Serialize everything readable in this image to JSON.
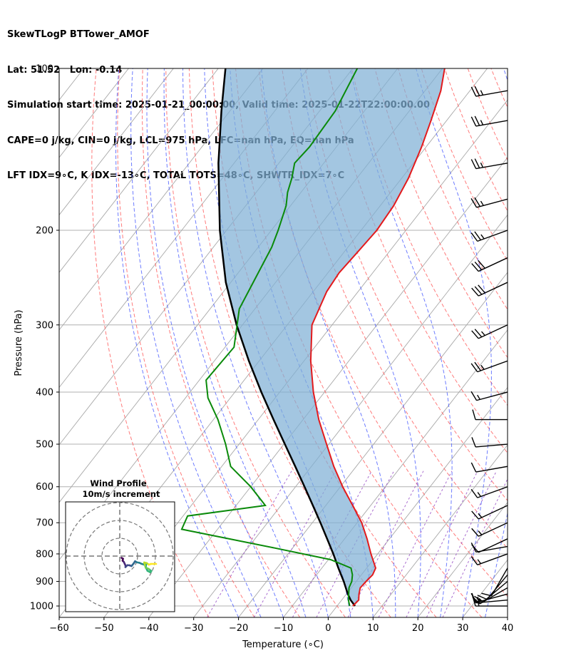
{
  "header": {
    "line1": "SkewTLogP BTTower_AMOF",
    "line2": "Lat: 51.52   Lon: -0.14",
    "line3": "Simulation start time: 2025-01-21_00:00:00, Valid time: 2025-01-22T22:00:00.00",
    "line4": "CAPE=0 j/kg, CIN=0 j/kg, LCL=975 hPa, LFC=nan hPa, EQ=nan hPa",
    "line5": "LFT IDX=9∘C, K IDX=-13∘C, TOTAL TOTS=48∘C, SHWTR_IDX=7∘C"
  },
  "chart_data": {
    "type": "skewt",
    "xlabel": "Temperature (∘C)",
    "ylabel": "Pressure (hPa)",
    "xlim": [
      -60,
      40
    ],
    "ylim": [
      1050,
      100
    ],
    "y_scale": "log",
    "x_ticks": [
      "−60",
      "−50",
      "−40",
      "−30",
      "−20",
      "−10",
      "0",
      "10",
      "20",
      "30",
      "40"
    ],
    "x_tick_values": [
      -60,
      -50,
      -40,
      -30,
      -20,
      -10,
      0,
      10,
      20,
      30,
      40
    ],
    "y_ticks": [
      "100",
      "200",
      "300",
      "400",
      "500",
      "600",
      "700",
      "800",
      "900",
      "1000"
    ],
    "y_tick_values": [
      100,
      200,
      300,
      400,
      500,
      600,
      700,
      800,
      900,
      1000
    ],
    "grid": true,
    "colors": {
      "temperature": "#e31a1c",
      "dewpoint": "#0a8a0a",
      "parcel": "#000000",
      "cin_fill": "#7fb0d6",
      "dry_adiabat": "#ff5a5a",
      "moist_adiabat": "#4a5cff",
      "mixing_ratio": "#9b55c8",
      "isotherm": "#a8a8a8"
    },
    "temperature_profile": [
      {
        "p": 1000,
        "t": 3.5
      },
      {
        "p": 975,
        "t": 3.8
      },
      {
        "p": 950,
        "t": 2.8
      },
      {
        "p": 925,
        "t": 2.0
      },
      {
        "p": 900,
        "t": 2.2
      },
      {
        "p": 875,
        "t": 2.5
      },
      {
        "p": 850,
        "t": 2.0
      },
      {
        "p": 800,
        "t": -1.5
      },
      {
        "p": 750,
        "t": -5.0
      },
      {
        "p": 700,
        "t": -9.0
      },
      {
        "p": 650,
        "t": -14.0
      },
      {
        "p": 600,
        "t": -19.5
      },
      {
        "p": 550,
        "t": -25.0
      },
      {
        "p": 500,
        "t": -30.5
      },
      {
        "p": 450,
        "t": -36.5
      },
      {
        "p": 400,
        "t": -42.5
      },
      {
        "p": 350,
        "t": -48.5
      },
      {
        "p": 300,
        "t": -54.5
      },
      {
        "p": 260,
        "t": -57.0
      },
      {
        "p": 240,
        "t": -57.5
      },
      {
        "p": 220,
        "t": -57.0
      },
      {
        "p": 200,
        "t": -56.5
      },
      {
        "p": 180,
        "t": -57.0
      },
      {
        "p": 160,
        "t": -58.5
      },
      {
        "p": 140,
        "t": -61.0
      },
      {
        "p": 125,
        "t": -63.5
      },
      {
        "p": 110,
        "t": -66.5
      },
      {
        "p": 100,
        "t": -69.5
      }
    ],
    "dewpoint_profile": [
      {
        "p": 1000,
        "t": 2.8
      },
      {
        "p": 975,
        "t": 1.5
      },
      {
        "p": 950,
        "t": 0.5
      },
      {
        "p": 925,
        "t": -0.5
      },
      {
        "p": 900,
        "t": -1.0
      },
      {
        "p": 875,
        "t": -2.0
      },
      {
        "p": 850,
        "t": -3.5
      },
      {
        "p": 820,
        "t": -9.5
      },
      {
        "p": 780,
        "t": -24.0
      },
      {
        "p": 720,
        "t": -48.0
      },
      {
        "p": 680,
        "t": -49.0
      },
      {
        "p": 650,
        "t": -33.5
      },
      {
        "p": 600,
        "t": -40.0
      },
      {
        "p": 550,
        "t": -48.0
      },
      {
        "p": 500,
        "t": -53.0
      },
      {
        "p": 450,
        "t": -59.0
      },
      {
        "p": 410,
        "t": -65.0
      },
      {
        "p": 380,
        "t": -68.5
      },
      {
        "p": 330,
        "t": -68.0
      },
      {
        "p": 280,
        "t": -73.5
      },
      {
        "p": 250,
        "t": -75.0
      },
      {
        "p": 215,
        "t": -77.0
      },
      {
        "p": 200,
        "t": -78.5
      },
      {
        "p": 180,
        "t": -81.0
      },
      {
        "p": 170,
        "t": -83.0
      },
      {
        "p": 160,
        "t": -84.5
      },
      {
        "p": 150,
        "t": -86.5
      },
      {
        "p": 140,
        "t": -86.0
      },
      {
        "p": 120,
        "t": -86.5
      },
      {
        "p": 100,
        "t": -89.0
      }
    ],
    "parcel_profile": [
      {
        "p": 1000,
        "t": 4.0
      },
      {
        "p": 975,
        "t": 2.0
      },
      {
        "p": 950,
        "t": 0.3
      },
      {
        "p": 900,
        "t": -2.8
      },
      {
        "p": 850,
        "t": -6.3
      },
      {
        "p": 800,
        "t": -9.9
      },
      {
        "p": 750,
        "t": -13.9
      },
      {
        "p": 700,
        "t": -18.2
      },
      {
        "p": 650,
        "t": -22.9
      },
      {
        "p": 600,
        "t": -28.0
      },
      {
        "p": 550,
        "t": -33.6
      },
      {
        "p": 500,
        "t": -39.8
      },
      {
        "p": 450,
        "t": -46.6
      },
      {
        "p": 400,
        "t": -54.1
      },
      {
        "p": 350,
        "t": -62.3
      },
      {
        "p": 300,
        "t": -71.3
      },
      {
        "p": 250,
        "t": -81.1
      },
      {
        "p": 200,
        "t": -91.5
      },
      {
        "p": 150,
        "t": -103.5
      },
      {
        "p": 120,
        "t": -111.9
      },
      {
        "p": 100,
        "t": -118.4
      }
    ],
    "wind_barbs": [
      {
        "p": 1000,
        "speed_kt": 15,
        "direction_deg": 270
      },
      {
        "p": 975,
        "speed_kt": 15,
        "direction_deg": 265
      },
      {
        "p": 950,
        "speed_kt": 15,
        "direction_deg": 255
      },
      {
        "p": 925,
        "speed_kt": 15,
        "direction_deg": 240
      },
      {
        "p": 900,
        "speed_kt": 10,
        "direction_deg": 230
      },
      {
        "p": 875,
        "speed_kt": 10,
        "direction_deg": 220
      },
      {
        "p": 850,
        "speed_kt": 10,
        "direction_deg": 210
      },
      {
        "p": 800,
        "speed_kt": 15,
        "direction_deg": 250
      },
      {
        "p": 775,
        "speed_kt": 10,
        "direction_deg": 260
      },
      {
        "p": 750,
        "speed_kt": 10,
        "direction_deg": 245
      },
      {
        "p": 700,
        "speed_kt": 15,
        "direction_deg": 245
      },
      {
        "p": 650,
        "speed_kt": 15,
        "direction_deg": 245
      },
      {
        "p": 600,
        "speed_kt": 15,
        "direction_deg": 250
      },
      {
        "p": 550,
        "speed_kt": 10,
        "direction_deg": 260
      },
      {
        "p": 500,
        "speed_kt": 10,
        "direction_deg": 265
      },
      {
        "p": 450,
        "speed_kt": 10,
        "direction_deg": 270
      },
      {
        "p": 400,
        "speed_kt": 15,
        "direction_deg": 255
      },
      {
        "p": 350,
        "speed_kt": 25,
        "direction_deg": 250
      },
      {
        "p": 300,
        "speed_kt": 25,
        "direction_deg": 245
      },
      {
        "p": 250,
        "speed_kt": 30,
        "direction_deg": 245
      },
      {
        "p": 225,
        "speed_kt": 30,
        "direction_deg": 245
      },
      {
        "p": 200,
        "speed_kt": 25,
        "direction_deg": 250
      },
      {
        "p": 175,
        "speed_kt": 25,
        "direction_deg": 255
      },
      {
        "p": 150,
        "speed_kt": 25,
        "direction_deg": 260
      },
      {
        "p": 125,
        "speed_kt": 25,
        "direction_deg": 260
      },
      {
        "p": 110,
        "speed_kt": 25,
        "direction_deg": 260
      }
    ],
    "hodograph": {
      "title_line1": "Wind Profile",
      "title_line2": "10m/s increment",
      "ring_increment_ms": 10,
      "rings": 3,
      "points_uv": [
        [
          1.0,
          -1.0
        ],
        [
          1.8,
          -1.5
        ],
        [
          1.6,
          -2.6
        ],
        [
          2.3,
          -3.3
        ],
        [
          2.8,
          -4.4
        ],
        [
          3.3,
          -5.5
        ],
        [
          3.2,
          -6.2
        ],
        [
          4.3,
          -5.1
        ],
        [
          5.5,
          -5.2
        ],
        [
          6.6,
          -5.6
        ],
        [
          7.9,
          -4.0
        ],
        [
          8.6,
          -2.9
        ],
        [
          9.6,
          -3.5
        ],
        [
          11.1,
          -3.8
        ],
        [
          12.1,
          -4.3
        ],
        [
          13.7,
          -4.8
        ],
        [
          14.8,
          -4.5
        ],
        [
          14.6,
          -6.3
        ],
        [
          15.6,
          -8.3
        ],
        [
          17.1,
          -9.1
        ],
        [
          17.7,
          -8.4
        ],
        [
          16.5,
          -7.4
        ],
        [
          15.6,
          -6.9
        ],
        [
          14.6,
          -6.6
        ],
        [
          14.1,
          -5.0
        ],
        [
          13.7,
          -3.6
        ],
        [
          15.1,
          -3.9
        ],
        [
          16.3,
          -4.8
        ],
        [
          17.5,
          -4.4
        ],
        [
          19.4,
          -4.4
        ],
        [
          20.4,
          -4.4
        ]
      ]
    }
  }
}
